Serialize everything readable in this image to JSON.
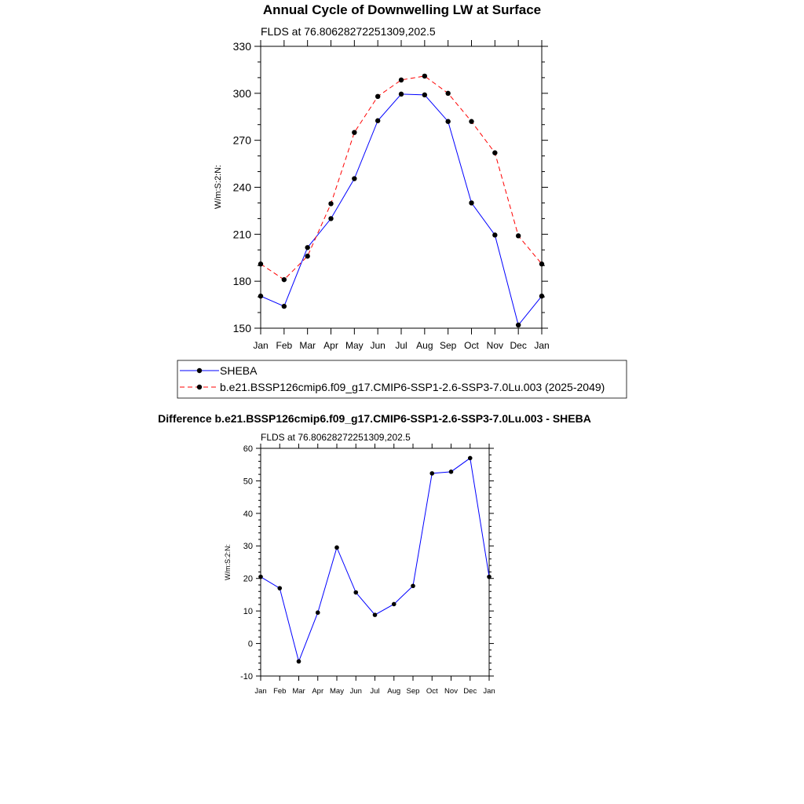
{
  "chart_data": [
    {
      "type": "line",
      "title": "Annual Cycle of Downwelling LW at Surface",
      "subtitle": "FLDS at 76.80628272251309,202.5",
      "xlabel": "",
      "ylabel": "W/m:S:2:N:",
      "categories": [
        "Jan",
        "Feb",
        "Mar",
        "Apr",
        "May",
        "Jun",
        "Jul",
        "Aug",
        "Sep",
        "Oct",
        "Nov",
        "Dec",
        "Jan"
      ],
      "ylim": [
        150,
        330
      ],
      "yticks": [
        150,
        180,
        210,
        240,
        270,
        300,
        330
      ],
      "series": [
        {
          "name": "SHEBA",
          "color": "#0000ff",
          "dash": "solid",
          "values": [
            170.5,
            164,
            201.5,
            220,
            245.5,
            282.5,
            299.5,
            299,
            282,
            230,
            209.5,
            152,
            170.5
          ]
        },
        {
          "name": "b.e21.BSSP126cmip6.f09_g17.CMIP6-SSP1-2.6-SSP3-7.0Lu.003 (2025-2049)",
          "color": "#ff0000",
          "dash": "dashed",
          "values": [
            191,
            181,
            196,
            229.5,
            275,
            298,
            308.5,
            311,
            300,
            282,
            262,
            209,
            191
          ]
        }
      ],
      "legend": "below"
    },
    {
      "type": "line",
      "title": "Difference b.e21.BSSP126cmip6.f09_g17.CMIP6-SSP1-2.6-SSP3-7.0Lu.003 - SHEBA",
      "subtitle": "FLDS at 76.80628272251309,202.5",
      "xlabel": "",
      "ylabel": "W/m:S:2:N:",
      "categories": [
        "Jan",
        "Feb",
        "Mar",
        "Apr",
        "May",
        "Jun",
        "Jul",
        "Aug",
        "Sep",
        "Oct",
        "Nov",
        "Dec",
        "Jan"
      ],
      "ylim": [
        -10,
        60
      ],
      "yticks": [
        -10,
        0,
        10,
        20,
        30,
        40,
        50,
        60
      ],
      "series": [
        {
          "name": "Difference",
          "color": "#0000ff",
          "dash": "solid",
          "values": [
            20.5,
            17,
            -5.5,
            9.5,
            29.5,
            15.7,
            8.8,
            12.1,
            17.7,
            52.3,
            52.8,
            57,
            20.5
          ]
        }
      ]
    }
  ]
}
